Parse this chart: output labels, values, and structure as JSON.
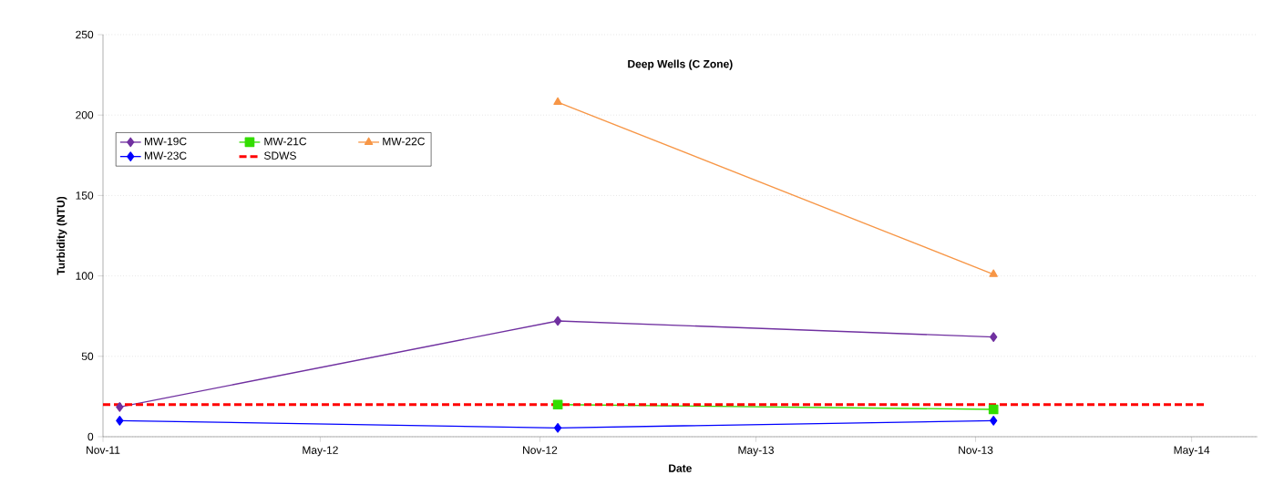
{
  "chart_data": {
    "type": "line",
    "title": "Deep Wells (C Zone)",
    "xlabel": "Date",
    "ylabel": "Turbidity (NTU)",
    "xlim": [
      "2011-11-01",
      "2014-06-25"
    ],
    "ylim": [
      0,
      250
    ],
    "yticks": [
      0,
      50,
      100,
      150,
      200,
      250
    ],
    "xticks": [
      {
        "value": "2011-11-01",
        "label": "Nov-11"
      },
      {
        "value": "2012-05-01",
        "label": "May-12"
      },
      {
        "value": "2012-11-01",
        "label": "Nov-12"
      },
      {
        "value": "2013-05-01",
        "label": "May-13"
      },
      {
        "value": "2013-11-01",
        "label": "Nov-13"
      },
      {
        "value": "2014-05-01",
        "label": "May-14"
      }
    ],
    "x": [
      "2011-11-15",
      "2012-11-16",
      "2013-11-16"
    ],
    "grid": "y",
    "legend": "top left",
    "series": [
      {
        "name": "MW-19C",
        "color": "#7030a0",
        "marker": "diamond",
        "values": [
          18.5,
          72,
          62
        ]
      },
      {
        "name": "MW-21C",
        "color": "#33dd00",
        "marker": "square",
        "values": [
          null,
          20,
          17
        ]
      },
      {
        "name": "MW-22C",
        "color": "#f79646",
        "marker": "triangle",
        "values": [
          null,
          208,
          101
        ]
      },
      {
        "name": "MW-23C",
        "color": "#0000ff",
        "marker": "diamond",
        "values": [
          10,
          5.5,
          10
        ]
      },
      {
        "name": "SDWS",
        "color": "#ff0000",
        "marker": "none",
        "line_style": "dashed",
        "x": [
          "2011-11-01",
          "2014-05-14"
        ],
        "values": [
          20,
          20
        ]
      }
    ]
  }
}
